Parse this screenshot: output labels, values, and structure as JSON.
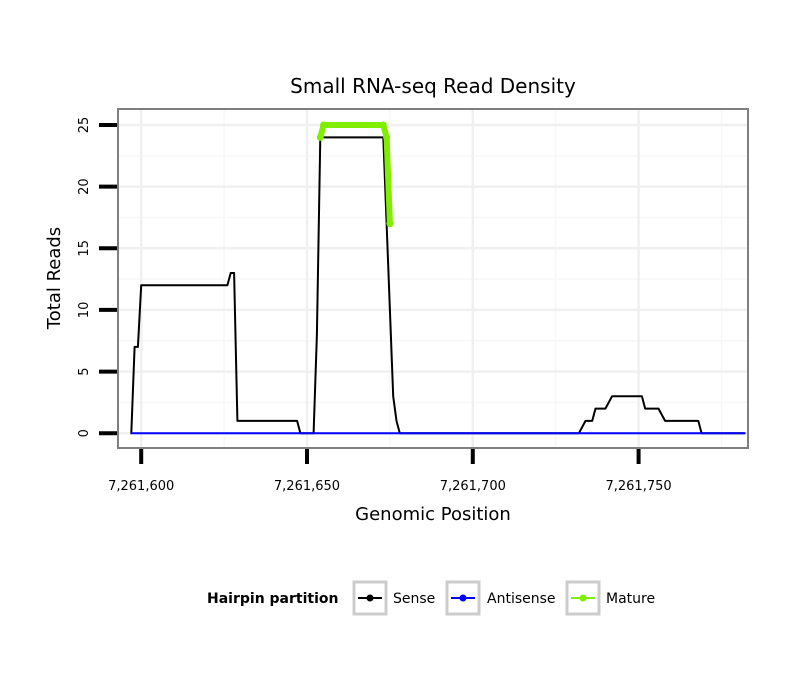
{
  "chart_data": {
    "type": "line",
    "title": "Small RNA-seq Read Density",
    "xlabel": "Genomic Position",
    "ylabel": "Total Reads",
    "xlim": [
      7261593,
      7261783
    ],
    "ylim": [
      -1.2,
      26.3
    ],
    "x_ticks": [
      7261600,
      7261650,
      7261700,
      7261750
    ],
    "x_tick_labels": [
      "7,261,600",
      "7,261,650",
      "7,261,700",
      "7,261,750"
    ],
    "y_ticks": [
      0,
      5,
      10,
      15,
      20,
      25
    ],
    "y_tick_labels": [
      "0",
      "5",
      "10",
      "15",
      "20",
      "25"
    ],
    "grid": true,
    "legend": {
      "title": "Hairpin partition",
      "position": "bottom",
      "entries": [
        {
          "label": "Sense",
          "color": "#000000"
        },
        {
          "label": "Antisense",
          "color": "#0000ff"
        },
        {
          "label": "Mature",
          "color": "#80ee00"
        }
      ]
    },
    "series": [
      {
        "name": "Sense",
        "color": "#000000",
        "points": [
          [
            7261597,
            0
          ],
          [
            7261598,
            7
          ],
          [
            7261599,
            7
          ],
          [
            7261600,
            12
          ],
          [
            7261626,
            12
          ],
          [
            7261627,
            13
          ],
          [
            7261628,
            13
          ],
          [
            7261629,
            1
          ],
          [
            7261647,
            1
          ],
          [
            7261648,
            0
          ],
          [
            7261652,
            0
          ],
          [
            7261653,
            8
          ],
          [
            7261654,
            24
          ],
          [
            7261673,
            24
          ],
          [
            7261674,
            17
          ],
          [
            7261675,
            10
          ],
          [
            7261676,
            3
          ],
          [
            7261677,
            1
          ],
          [
            7261678,
            0
          ],
          [
            7261732,
            0
          ],
          [
            7261734,
            1
          ],
          [
            7261736,
            1
          ],
          [
            7261737,
            2
          ],
          [
            7261740,
            2
          ],
          [
            7261742,
            3
          ],
          [
            7261751,
            3
          ],
          [
            7261752,
            2
          ],
          [
            7261756,
            2
          ],
          [
            7261758,
            1
          ],
          [
            7261768,
            1
          ],
          [
            7261769,
            0
          ],
          [
            7261782,
            0
          ]
        ]
      },
      {
        "name": "Antisense",
        "color": "#0000ff",
        "points": [
          [
            7261597,
            0
          ],
          [
            7261782,
            0
          ]
        ]
      },
      {
        "name": "Mature",
        "color": "#80ee00",
        "points": [
          [
            7261654,
            24
          ],
          [
            7261655,
            25
          ],
          [
            7261673,
            25
          ],
          [
            7261674,
            24
          ],
          [
            7261675,
            17
          ]
        ]
      }
    ]
  }
}
